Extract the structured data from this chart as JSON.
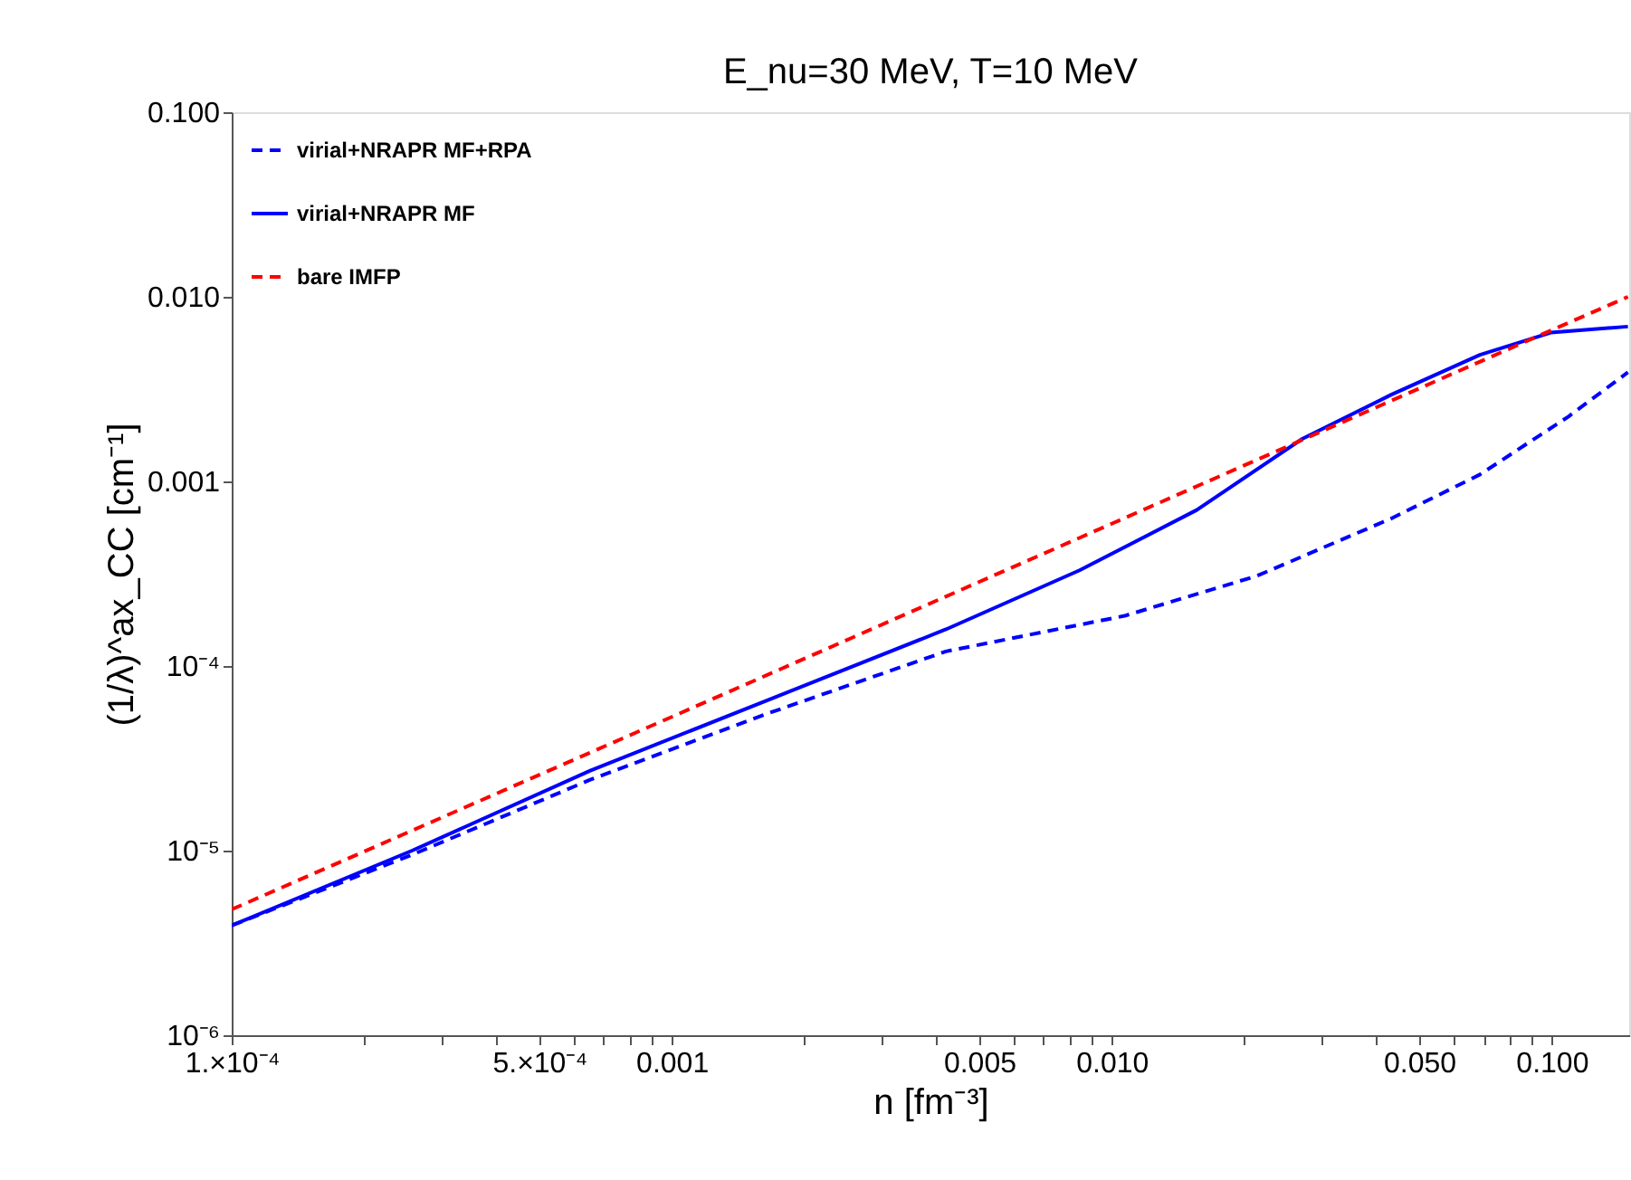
{
  "chart_data": {
    "type": "line",
    "title": "E_nu=30 MeV, T=10 MeV",
    "xlabel": "n [fm⁻³]",
    "ylabel": "(1/λ)^ax_CC [cm⁻¹]",
    "log": "xy",
    "grid": false,
    "legend": "top left",
    "marker": "none",
    "xlim": [
      0.0001,
      0.15
    ],
    "ylim": [
      1e-06,
      0.1
    ],
    "xticks": [
      {
        "value": 0.0001,
        "label": "1.×10⁻⁴"
      },
      {
        "value": 0.0002,
        "label": null
      },
      {
        "value": 0.0003,
        "label": null
      },
      {
        "value": 0.0004,
        "label": null
      },
      {
        "value": 0.0005,
        "label": "5.×10⁻⁴"
      },
      {
        "value": 0.0006,
        "label": null
      },
      {
        "value": 0.0007,
        "label": null
      },
      {
        "value": 0.0008,
        "label": null
      },
      {
        "value": 0.0009,
        "label": null
      },
      0.001,
      {
        "value": 0.002,
        "label": null
      },
      {
        "value": 0.003,
        "label": null
      },
      {
        "value": 0.004,
        "label": null
      },
      0.005,
      {
        "value": 0.006,
        "label": null
      },
      {
        "value": 0.007,
        "label": null
      },
      {
        "value": 0.008,
        "label": null
      },
      {
        "value": 0.009,
        "label": null
      },
      {
        "value": 0.01,
        "label": "0.010"
      },
      {
        "value": 0.02,
        "label": null
      },
      {
        "value": 0.03,
        "label": null
      },
      {
        "value": 0.04,
        "label": null
      },
      {
        "value": 0.05,
        "label": "0.050"
      },
      {
        "value": 0.06,
        "label": null
      },
      {
        "value": 0.07,
        "label": null
      },
      {
        "value": 0.08,
        "label": null
      },
      {
        "value": 0.09,
        "label": null
      },
      {
        "value": 0.1,
        "label": "0.100"
      }
    ],
    "yticks": [
      {
        "value": 1e-06,
        "label": "10⁻⁶"
      },
      {
        "value": 1e-05,
        "label": "10⁻⁵"
      },
      {
        "value": 0.0001,
        "label": "10⁻⁴"
      },
      0.001,
      {
        "value": 0.01,
        "label": "0.010"
      },
      {
        "value": 0.1,
        "label": "0.100"
      }
    ],
    "series": [
      {
        "name": "virial+NRAPR MF+RPA",
        "color": "#0000ff",
        "line_style": "dashed",
        "x": [
          0.0001,
          0.000257,
          0.000653,
          0.00166,
          0.0042,
          0.0107,
          0.0214,
          0.0432,
          0.0687,
          0.109,
          0.149
        ],
        "values": [
          3.93e-06,
          9.5e-06,
          2.42e-05,
          5.55e-05,
          0.00012,
          0.000187,
          0.000308,
          0.00063,
          0.00109,
          0.00224,
          0.0039
        ]
      },
      {
        "name": "virial+NRAPR MF",
        "color": "#0000ff",
        "line_style": "solid",
        "x": [
          0.0001,
          0.000257,
          0.000653,
          0.00166,
          0.0042,
          0.00845,
          0.0156,
          0.0271,
          0.0432,
          0.0687,
          0.0995,
          0.149
        ],
        "values": [
          3.93e-06,
          1e-05,
          2.71e-05,
          6.56e-05,
          0.000158,
          0.00033,
          0.0007,
          0.0017,
          0.00295,
          0.00485,
          0.0064,
          0.0069
        ]
      },
      {
        "name": "bare IMFP",
        "color": "#ff0000",
        "line_style": "dashed",
        "x": [
          0.0001,
          0.001,
          0.01,
          0.1,
          0.149
        ],
        "values": [
          4.8e-06,
          5.3e-05,
          0.00059,
          0.0066,
          0.01
        ]
      }
    ]
  }
}
